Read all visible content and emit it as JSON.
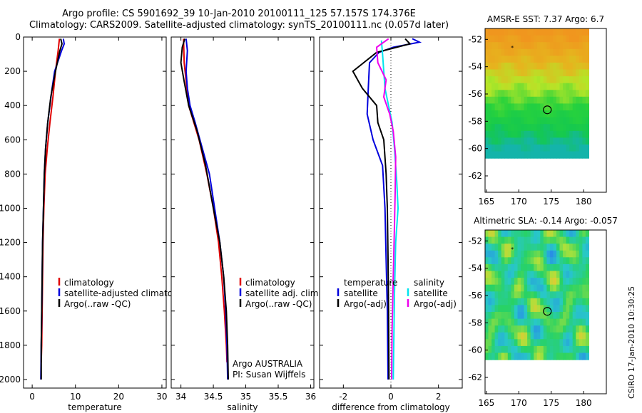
{
  "header": {
    "title_line1": "Argo profile: CS 5901692_39 10-Jan-2010 20100111_125 57.157S 174.376E",
    "title_line2": "Climatology: CARS2009. Satellite-adjusted climatology: synTS_20100111.nc (0.057d later)"
  },
  "footer": {
    "stamp": "CSIRO 17-Jan-2010 10:30:25"
  },
  "colors": {
    "climatology": "#e00000",
    "satellite": "#0000dd",
    "argo": "#000000",
    "argo_sal": "#ee00ee",
    "sat_sal": "#00e5ee"
  },
  "chart_data": [
    {
      "type": "line",
      "xlabel": "temperature",
      "ylabel": "",
      "xlim": [
        -2,
        31
      ],
      "ylim": [
        2050,
        0
      ],
      "yreverse": true,
      "xticks": [
        0,
        10,
        20,
        30
      ],
      "yticks": [
        0,
        200,
        400,
        600,
        800,
        1000,
        1200,
        1400,
        1600,
        1800,
        2000
      ],
      "legend": {
        "placement": "bottom-right",
        "entries": [
          "climatology",
          "satellite-adjusted climatology",
          "Argo(..raw -QC)"
        ]
      },
      "series": [
        {
          "name": "climatology",
          "color": "#e00000",
          "points": [
            [
              6.3,
              10
            ],
            [
              6.0,
              80
            ],
            [
              5.4,
              200
            ],
            [
              4.8,
              350
            ],
            [
              4.1,
              500
            ],
            [
              3.5,
              650
            ],
            [
              3.0,
              800
            ],
            [
              2.7,
              1000
            ],
            [
              2.5,
              1200
            ],
            [
              2.4,
              1400
            ],
            [
              2.3,
              1600
            ],
            [
              2.2,
              1800
            ],
            [
              2.1,
              1900
            ]
          ]
        },
        {
          "name": "satellite-adjusted climatology",
          "color": "#0000dd",
          "points": [
            [
              7.2,
              10
            ],
            [
              7.4,
              40
            ],
            [
              6.8,
              80
            ],
            [
              5.2,
              200
            ],
            [
              4.6,
              300
            ],
            [
              3.6,
              500
            ],
            [
              3.1,
              650
            ],
            [
              2.8,
              800
            ],
            [
              2.6,
              1000
            ],
            [
              2.4,
              1200
            ],
            [
              2.3,
              1400
            ],
            [
              2.2,
              1600
            ],
            [
              2.1,
              1800
            ],
            [
              2.0,
              2000
            ]
          ]
        },
        {
          "name": "Argo(..raw -QC)",
          "color": "#000000",
          "points": [
            [
              6.6,
              10
            ],
            [
              6.9,
              40
            ],
            [
              6.4,
              80
            ],
            [
              5.4,
              200
            ],
            [
              4.3,
              350
            ],
            [
              3.6,
              500
            ],
            [
              3.1,
              650
            ],
            [
              2.8,
              800
            ],
            [
              2.6,
              1000
            ],
            [
              2.4,
              1200
            ],
            [
              2.3,
              1400
            ],
            [
              2.2,
              1600
            ],
            [
              2.1,
              1800
            ],
            [
              2.1,
              2000
            ]
          ]
        }
      ]
    },
    {
      "type": "line",
      "xlabel": "salinity",
      "ylabel": "",
      "xlim": [
        33.85,
        36.05
      ],
      "ylim": [
        2050,
        0
      ],
      "yreverse": true,
      "xticks": [
        34,
        34.5,
        35,
        35.5,
        36
      ],
      "yticks": [],
      "legend": {
        "placement": "bottom-right",
        "entries": [
          "climatology",
          "satellite adj. clim.",
          "Argo(..raw -QC)"
        ]
      },
      "annotation": [
        "Argo AUSTRALIA",
        "PI: Susan Wijffels"
      ],
      "series": [
        {
          "name": "climatology",
          "color": "#e00000",
          "points": [
            [
              34.04,
              10
            ],
            [
              34.05,
              150
            ],
            [
              34.12,
              400
            ],
            [
              34.28,
              600
            ],
            [
              34.4,
              800
            ],
            [
              34.5,
              1000
            ],
            [
              34.58,
              1200
            ],
            [
              34.63,
              1400
            ],
            [
              34.67,
              1600
            ],
            [
              34.7,
              1800
            ],
            [
              34.71,
              1900
            ]
          ]
        },
        {
          "name": "satellite adj. clim.",
          "color": "#0000dd",
          "points": [
            [
              34.08,
              10
            ],
            [
              34.1,
              80
            ],
            [
              34.08,
              200
            ],
            [
              34.1,
              300
            ],
            [
              34.14,
              400
            ],
            [
              34.22,
              500
            ],
            [
              34.33,
              650
            ],
            [
              34.44,
              800
            ],
            [
              34.52,
              1000
            ],
            [
              34.6,
              1200
            ],
            [
              34.66,
              1400
            ],
            [
              34.69,
              1600
            ],
            [
              34.71,
              1800
            ],
            [
              34.72,
              2000
            ]
          ]
        },
        {
          "name": "Argo(..raw -QC)",
          "color": "#000000",
          "points": [
            [
              34.06,
              10
            ],
            [
              34.02,
              60
            ],
            [
              34.0,
              150
            ],
            [
              34.05,
              260
            ],
            [
              34.12,
              400
            ],
            [
              34.25,
              550
            ],
            [
              34.38,
              750
            ],
            [
              34.5,
              1000
            ],
            [
              34.6,
              1200
            ],
            [
              34.66,
              1400
            ],
            [
              34.7,
              1600
            ],
            [
              34.72,
              1800
            ],
            [
              34.73,
              2000
            ]
          ]
        }
      ]
    },
    {
      "type": "line",
      "xlabel": "difference from climatology",
      "ylabel": "",
      "xlim": [
        -3,
        3
      ],
      "ylim": [
        2050,
        0
      ],
      "yreverse": true,
      "xticks": [
        -2,
        0,
        2
      ],
      "yticks": [],
      "zero_line": "dotted",
      "legend": {
        "placement": "bottom",
        "entries": [
          "temperature",
          "satellite",
          "Argo(-adj)",
          "salinity",
          "satellite",
          "Argo(-adj)"
        ]
      },
      "series": [
        {
          "name": "temperature satellite",
          "color": "#0000dd",
          "points": [
            [
              0.9,
              10
            ],
            [
              1.2,
              30
            ],
            [
              0.1,
              60
            ],
            [
              -0.5,
              90
            ],
            [
              -0.9,
              150
            ],
            [
              -0.95,
              300
            ],
            [
              -1.0,
              450
            ],
            [
              -0.75,
              600
            ],
            [
              -0.35,
              750
            ],
            [
              -0.25,
              1000
            ],
            [
              -0.2,
              1300
            ],
            [
              -0.15,
              1600
            ],
            [
              -0.12,
              2000
            ]
          ]
        },
        {
          "name": "temperature Argo(-adj)",
          "color": "#000000",
          "points": [
            [
              0.6,
              10
            ],
            [
              0.8,
              40
            ],
            [
              -0.6,
              90
            ],
            [
              -1.6,
              200
            ],
            [
              -1.2,
              300
            ],
            [
              -0.6,
              400
            ],
            [
              -0.55,
              500
            ],
            [
              -0.3,
              600
            ],
            [
              -0.2,
              800
            ],
            [
              -0.15,
              1000
            ],
            [
              -0.12,
              1300
            ],
            [
              -0.1,
              1600
            ],
            [
              -0.08,
              2000
            ]
          ]
        },
        {
          "name": "salinity satellite",
          "color": "#00e5ee",
          "points": [
            [
              -0.4,
              20
            ],
            [
              -0.35,
              100
            ],
            [
              -0.3,
              200
            ],
            [
              -0.25,
              300
            ],
            [
              -0.1,
              400
            ],
            [
              0.05,
              500
            ],
            [
              0.15,
              650
            ],
            [
              0.25,
              850
            ],
            [
              0.3,
              1000
            ],
            [
              0.2,
              1200
            ],
            [
              0.15,
              1500
            ],
            [
              0.12,
              1800
            ],
            [
              0.1,
              2000
            ]
          ]
        },
        {
          "name": "salinity Argo(-adj)",
          "color": "#ee00ee",
          "points": [
            [
              -0.1,
              10
            ],
            [
              -0.6,
              60
            ],
            [
              -0.55,
              150
            ],
            [
              -0.2,
              250
            ],
            [
              -0.3,
              350
            ],
            [
              -0.05,
              450
            ],
            [
              0.1,
              550
            ],
            [
              0.2,
              700
            ],
            [
              0.18,
              900
            ],
            [
              0.15,
              1100
            ],
            [
              0.1,
              1400
            ],
            [
              0.05,
              1700
            ],
            [
              0.03,
              2000
            ]
          ]
        }
      ]
    },
    {
      "type": "heatmap",
      "title": "AMSR-E SST: 7.37 Argo: 6.7",
      "xlim": [
        164.8,
        183.5
      ],
      "ylim": [
        -63.2,
        -51.2
      ],
      "xticks": [
        165,
        170,
        175,
        180
      ],
      "yticks": [
        -52,
        -54,
        -56,
        -58,
        -60,
        -62
      ],
      "marker_argo": [
        174.4,
        -57.16
      ],
      "marker_small": [
        169,
        -52.6
      ]
    },
    {
      "type": "heatmap",
      "title": "Altimetric SLA: -0.14 Argo: -0.057",
      "xlim": [
        164.8,
        183.5
      ],
      "ylim": [
        -63.2,
        -51.2
      ],
      "xticks": [
        165,
        170,
        175,
        180
      ],
      "yticks": [
        -52,
        -54,
        -56,
        -58,
        -60,
        -62
      ],
      "marker_argo": [
        174.4,
        -57.16
      ],
      "marker_small": [
        169,
        -52.6
      ]
    }
  ]
}
